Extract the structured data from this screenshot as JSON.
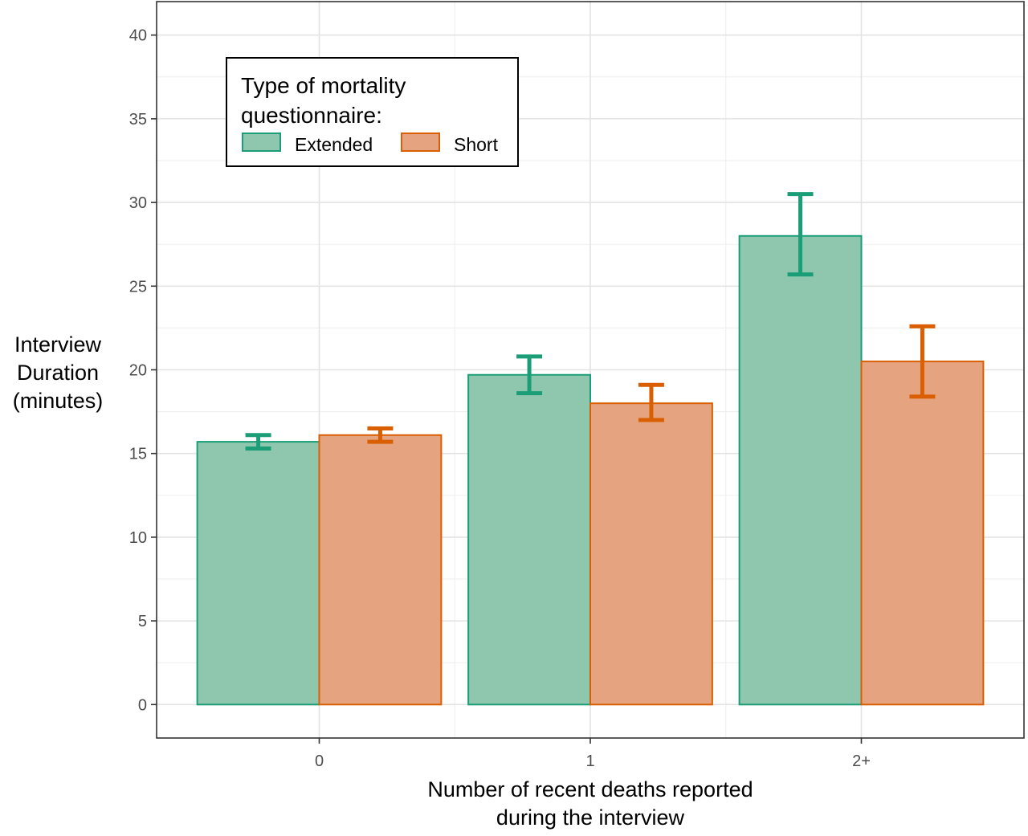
{
  "chart_data": {
    "type": "bar",
    "categories": [
      "0",
      "1",
      "2+"
    ],
    "series": [
      {
        "name": "Extended",
        "values": [
          15.7,
          19.7,
          28.0
        ],
        "error_low": [
          15.3,
          18.6,
          25.7
        ],
        "error_high": [
          16.1,
          20.8,
          30.5
        ]
      },
      {
        "name": "Short",
        "values": [
          16.1,
          18.0,
          20.5
        ],
        "error_low": [
          15.7,
          17.0,
          18.4
        ],
        "error_high": [
          16.5,
          19.1,
          22.6
        ]
      }
    ],
    "colors": {
      "Extended": {
        "fill": "#8fc7ae",
        "stroke": "#1b9e77"
      },
      "Short": {
        "fill": "#e5a47f",
        "stroke": "#d95f02"
      }
    },
    "xlabel": [
      "Number of recent deaths reported",
      "during the interview"
    ],
    "ylabel": [
      "Interview",
      "Duration",
      "(minutes)"
    ],
    "ylim": [
      -2,
      42
    ],
    "y_ticks": [
      "0",
      "5",
      "10",
      "15",
      "20",
      "25",
      "30",
      "35",
      "40"
    ],
    "grid": true,
    "legend": {
      "title": [
        "Type of mortality",
        "questionnaire:"
      ],
      "position": "top-left",
      "entries": [
        "Extended",
        "Short"
      ]
    }
  }
}
